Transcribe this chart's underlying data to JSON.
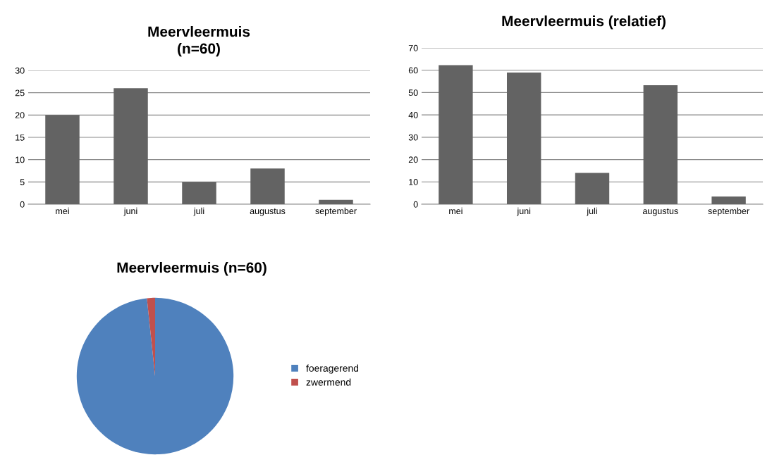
{
  "chart_data": [
    {
      "type": "bar",
      "title": "Meervleermuis\n(n=60)",
      "categories": [
        "mei",
        "juni",
        "juli",
        "augustus",
        "september"
      ],
      "values": [
        20,
        26,
        5,
        8,
        1
      ],
      "color": "#636363",
      "ylim": [
        0,
        30
      ],
      "yticks": [
        0,
        5,
        10,
        15,
        20,
        25,
        30
      ],
      "grid": "y"
    },
    {
      "type": "bar",
      "title": "Meervleermuis (relatief)",
      "categories": [
        "mei",
        "juni",
        "juli",
        "augustus",
        "september"
      ],
      "values": [
        62.3,
        59,
        14,
        53.3,
        3.5
      ],
      "color": "#636363",
      "ylim": [
        0,
        70
      ],
      "yticks": [
        0,
        10,
        20,
        30,
        40,
        50,
        60,
        70
      ],
      "grid": "y"
    },
    {
      "type": "pie",
      "title": "Meervleermuis (n=60)",
      "categories": [
        "foeragerend",
        "zwermend"
      ],
      "values": [
        98.33,
        1.67
      ],
      "colors": [
        "#4f81bd",
        "#c0504d"
      ],
      "legend": "right"
    }
  ]
}
